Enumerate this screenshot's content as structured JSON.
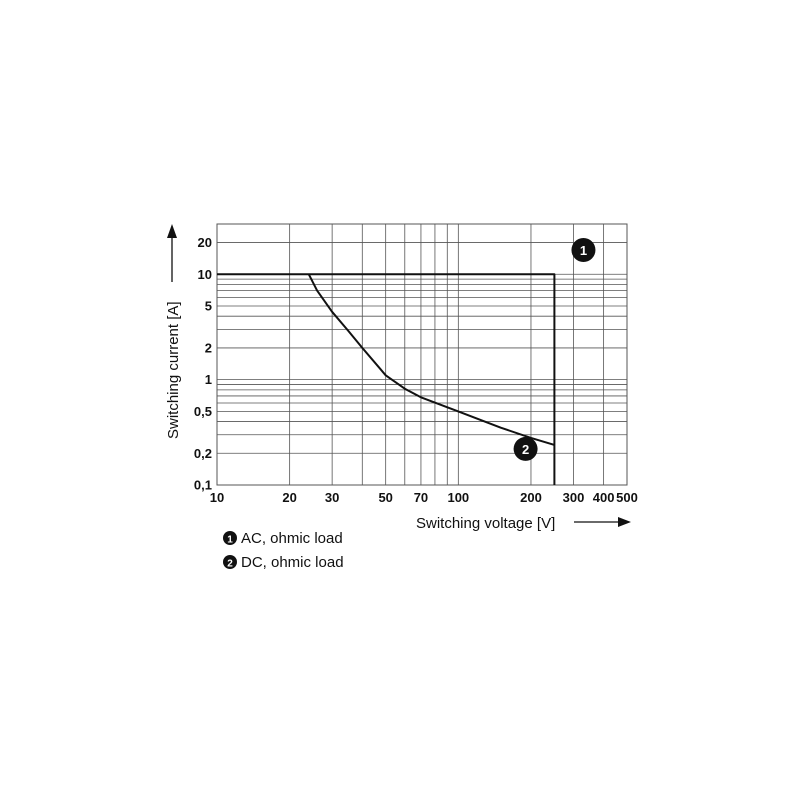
{
  "chart_data": {
    "type": "line",
    "xlabel": "Switching voltage [V]",
    "ylabel": "Switching current [A]",
    "x_scale": "log",
    "y_scale": "log",
    "xlim": [
      10,
      500
    ],
    "ylim": [
      0.1,
      30
    ],
    "grid": true,
    "x_tick_labels": [
      {
        "value": 10,
        "label": "10"
      },
      {
        "value": 20,
        "label": "20"
      },
      {
        "value": 30,
        "label": "30"
      },
      {
        "value": 50,
        "label": "50"
      },
      {
        "value": 70,
        "label": "70"
      },
      {
        "value": 100,
        "label": "100"
      },
      {
        "value": 200,
        "label": "200"
      },
      {
        "value": 300,
        "label": "300"
      },
      {
        "value": 400,
        "label": "400"
      },
      {
        "value": 500,
        "label": "500"
      }
    ],
    "y_tick_labels": [
      {
        "value": 0.1,
        "label": "0,1"
      },
      {
        "value": 0.2,
        "label": "0,2"
      },
      {
        "value": 0.5,
        "label": "0,5"
      },
      {
        "value": 1,
        "label": "1"
      },
      {
        "value": 2,
        "label": "2"
      },
      {
        "value": 5,
        "label": "5"
      },
      {
        "value": 10,
        "label": "10"
      },
      {
        "value": 20,
        "label": "20"
      }
    ],
    "x_grid": [
      10,
      20,
      30,
      40,
      50,
      60,
      70,
      80,
      90,
      100,
      200,
      300,
      400,
      500
    ],
    "y_grid": [
      0.1,
      0.2,
      0.3,
      0.4,
      0.5,
      0.6,
      0.7,
      0.8,
      0.9,
      1,
      2,
      3,
      4,
      5,
      6,
      7,
      8,
      9,
      10,
      20,
      30
    ],
    "series": [
      {
        "marker": "1",
        "x": [
          10,
          250,
          250
        ],
        "y": [
          10,
          10,
          0.1
        ]
      },
      {
        "marker": "2",
        "x": [
          24,
          26,
          30,
          35,
          40,
          50,
          60,
          70,
          100,
          150,
          200,
          250
        ],
        "y": [
          10,
          7,
          4.4,
          2.9,
          2.0,
          1.1,
          0.82,
          0.68,
          0.5,
          0.35,
          0.28,
          0.24
        ]
      }
    ],
    "markers": [
      {
        "label": "1",
        "x": 330,
        "y": 17
      },
      {
        "label": "2",
        "x": 190,
        "y": 0.22
      }
    ],
    "legend": [
      {
        "marker": "1",
        "text": "AC, ohmic load"
      },
      {
        "marker": "2",
        "text": "DC, ohmic load"
      }
    ]
  }
}
